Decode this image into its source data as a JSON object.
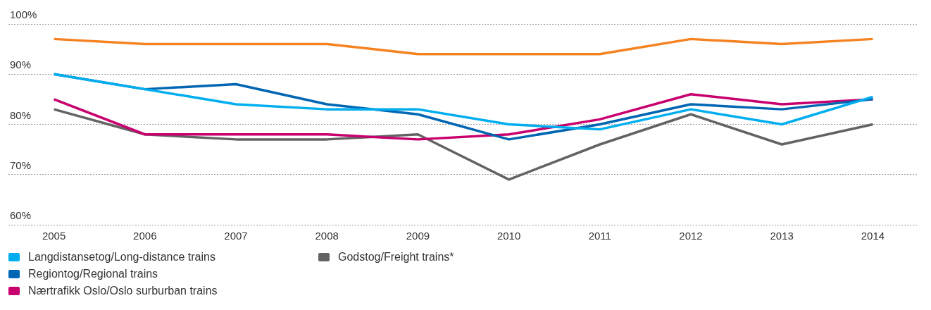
{
  "chart_data": {
    "type": "line",
    "categories": [
      "2005",
      "2006",
      "2007",
      "2008",
      "2009",
      "2010",
      "2011",
      "2012",
      "2013",
      "2014"
    ],
    "series": [
      {
        "name": "Langdistansetog/Long-distance trains",
        "color": "#00aeef",
        "values": [
          90,
          87,
          84,
          83,
          83,
          80,
          79,
          83,
          80,
          85.5
        ]
      },
      {
        "name": "Regiontog/Regional trains",
        "color": "#0066b3",
        "values": [
          90,
          87,
          88,
          84,
          82,
          77,
          80,
          84,
          83,
          85
        ]
      },
      {
        "name": "Nærtrafikk Oslo/Oslo surburban trains",
        "color": "#c8006e",
        "values": [
          85,
          78,
          78,
          78,
          77,
          78,
          81,
          86,
          84,
          85
        ]
      },
      {
        "name": "Godstog/Freight trains*",
        "color": "#636363",
        "values": [
          83,
          78,
          77,
          77,
          78,
          69,
          76,
          82,
          76,
          80
        ]
      },
      {
        "color": "#f58220",
        "values": [
          97,
          96,
          96,
          96,
          94,
          94,
          94,
          97,
          96,
          97
        ]
      }
    ],
    "ylim": [
      60,
      100
    ],
    "yticks": [
      {
        "value": 60,
        "label": "60%"
      },
      {
        "value": 70,
        "label": "70%"
      },
      {
        "value": 80,
        "label": "80%"
      },
      {
        "value": 90,
        "label": "90%"
      },
      {
        "value": 100,
        "label": "100%"
      }
    ],
    "grid": "y",
    "legend": "bottom left",
    "marker": "none",
    "line_style": "solid"
  }
}
